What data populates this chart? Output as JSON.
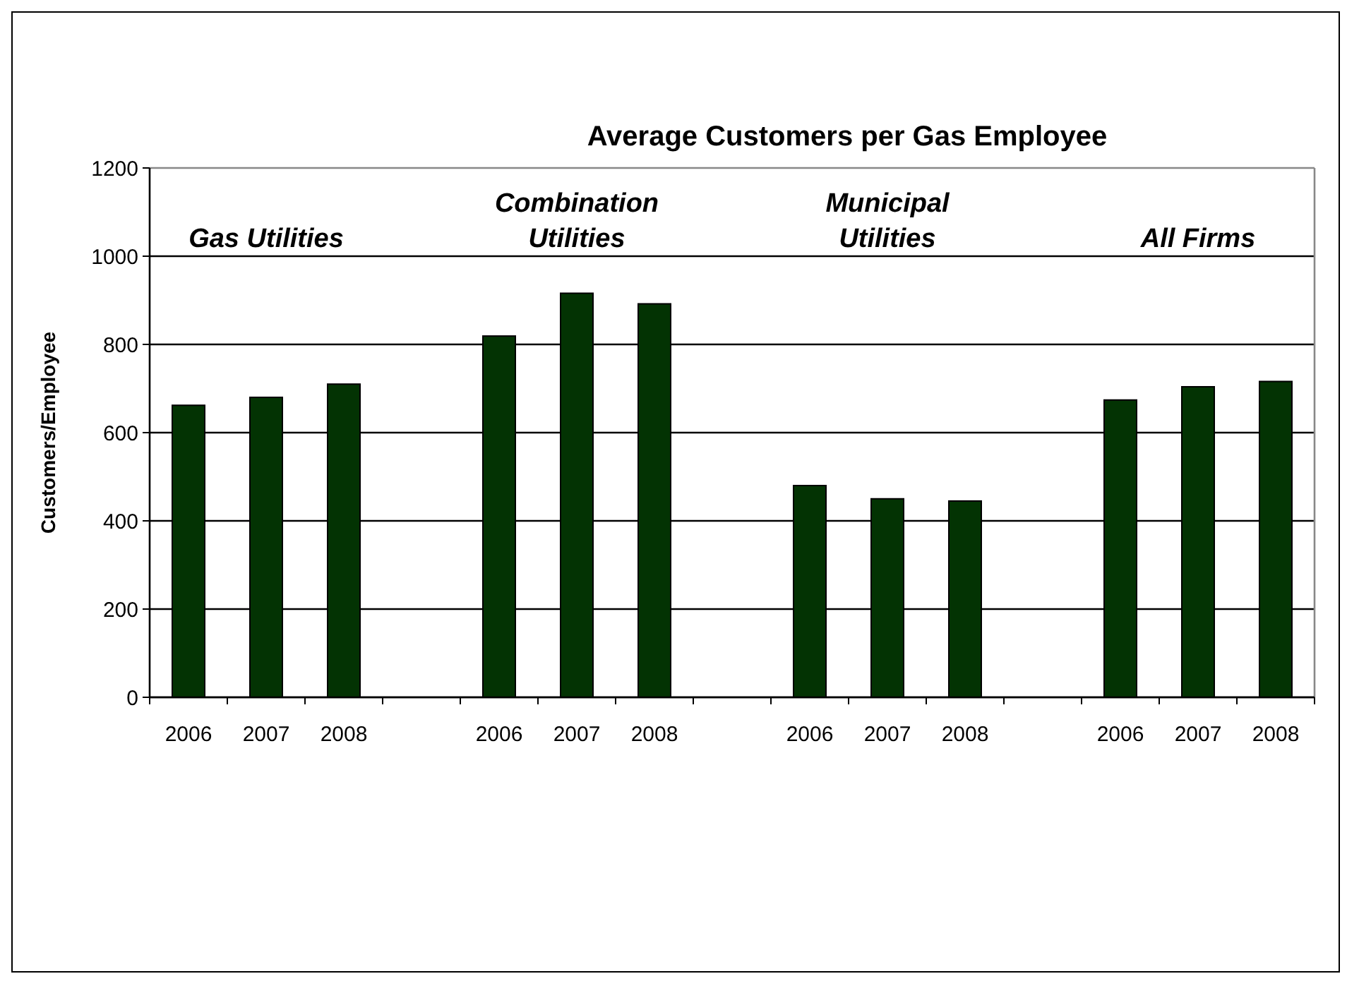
{
  "chart_data": {
    "type": "bar",
    "title": "Average Customers per Gas Employee",
    "ylabel": "Customers/Employee",
    "categories": [
      "2006",
      "2007",
      "2008",
      null,
      "2006",
      "2007",
      "2008",
      null,
      "2006",
      "2007",
      "2008",
      null,
      "2006",
      "2007",
      "2008"
    ],
    "values": [
      662,
      680,
      710,
      null,
      819,
      916,
      892,
      null,
      480,
      450,
      445,
      null,
      674,
      704,
      716
    ],
    "color": "#033303",
    "ylim": [
      0,
      1200
    ],
    "yticks": [
      0,
      200,
      400,
      600,
      800,
      1000,
      1200
    ],
    "grid": "y",
    "annotations": [
      "Gas Utilities",
      "Combination\nUtilities",
      "Municipal\nUtilities",
      "All Firms"
    ]
  }
}
